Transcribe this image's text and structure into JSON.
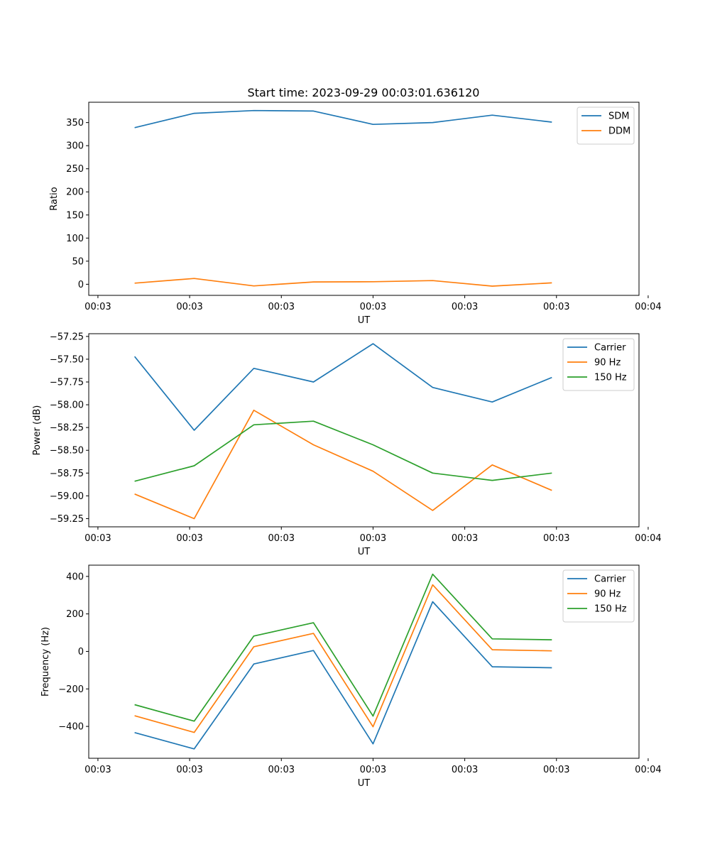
{
  "figure_title": "Start time: 2023-09-29 00:03:01.636120",
  "colors": {
    "blue": "#1f77b4",
    "orange": "#ff7f0e",
    "green": "#2ca02c"
  },
  "chart_data": [
    {
      "type": "line",
      "title": "Start time: 2023-09-29 00:03:01.636120",
      "xlabel": "UT",
      "ylabel": "Ratio",
      "x": [
        0.5,
        1.15,
        1.8,
        2.45,
        3.1,
        3.75,
        4.4,
        5.05
      ],
      "xlim": [
        0,
        6
      ],
      "xticks": [
        0.1,
        1.1,
        2.1,
        3.1,
        4.1,
        5.1,
        6.1
      ],
      "xtick_labels": [
        "00:03",
        "00:03",
        "00:03",
        "00:03",
        "00:03",
        "00:03",
        "00:04"
      ],
      "ylim": [
        -24,
        394
      ],
      "yticks": [
        0,
        50,
        100,
        150,
        200,
        250,
        300,
        350
      ],
      "ytick_labels": [
        "0",
        "50",
        "100",
        "150",
        "200",
        "250",
        "300",
        "350"
      ],
      "legend": "top-right",
      "series": [
        {
          "name": "SDM",
          "color": "#1f77b4",
          "values": [
            339,
            370,
            376,
            375,
            346,
            350,
            366,
            351
          ]
        },
        {
          "name": "DDM",
          "color": "#ff7f0e",
          "values": [
            2.5,
            12.5,
            -3.5,
            5,
            5.5,
            8,
            -4,
            3
          ]
        }
      ]
    },
    {
      "type": "line",
      "xlabel": "UT",
      "ylabel": "Power (dB)",
      "x": [
        0.5,
        1.15,
        1.8,
        2.45,
        3.1,
        3.75,
        4.4,
        5.05
      ],
      "xlim": [
        0,
        6
      ],
      "xticks": [
        0.1,
        1.1,
        2.1,
        3.1,
        4.1,
        5.1,
        6.1
      ],
      "xtick_labels": [
        "00:03",
        "00:03",
        "00:03",
        "00:03",
        "00:03",
        "00:03",
        "00:04"
      ],
      "ylim": [
        -59.34,
        -57.22
      ],
      "yticks": [
        -59.25,
        -59.0,
        -58.75,
        -58.5,
        -58.25,
        -58.0,
        -57.75,
        -57.5,
        -57.25
      ],
      "ytick_labels": [
        "−59.25",
        "−59.00",
        "−58.75",
        "−58.50",
        "−58.25",
        "−58.00",
        "−57.75",
        "−57.50",
        "−57.25"
      ],
      "legend": "top-right",
      "series": [
        {
          "name": "Carrier",
          "color": "#1f77b4",
          "values": [
            -57.47,
            -58.28,
            -57.6,
            -57.75,
            -57.33,
            -57.81,
            -57.97,
            -57.7
          ]
        },
        {
          "name": "90 Hz",
          "color": "#ff7f0e",
          "values": [
            -58.98,
            -59.25,
            -58.06,
            -58.44,
            -58.73,
            -59.16,
            -58.66,
            -58.94
          ]
        },
        {
          "name": "150 Hz",
          "color": "#2ca02c",
          "values": [
            -58.84,
            -58.67,
            -58.22,
            -58.18,
            -58.44,
            -58.75,
            -58.83,
            -58.75
          ]
        }
      ]
    },
    {
      "type": "line",
      "xlabel": "UT",
      "ylabel": "Frequency (Hz)",
      "x": [
        0.5,
        1.15,
        1.8,
        2.45,
        3.1,
        3.75,
        4.4,
        5.05
      ],
      "xlim": [
        0,
        6
      ],
      "xticks": [
        0.1,
        1.1,
        2.1,
        3.1,
        4.1,
        5.1,
        6.1
      ],
      "xtick_labels": [
        "00:03",
        "00:03",
        "00:03",
        "00:03",
        "00:03",
        "00:03",
        "00:04"
      ],
      "ylim": [
        -570,
        460
      ],
      "yticks": [
        -400,
        -200,
        0,
        200,
        400
      ],
      "ytick_labels": [
        "−400",
        "−200",
        "0",
        "200",
        "400"
      ],
      "legend": "top-right",
      "series": [
        {
          "name": "Carrier",
          "color": "#1f77b4",
          "values": [
            -433,
            -520,
            -67,
            5,
            -493,
            265,
            -82,
            -87
          ]
        },
        {
          "name": "90 Hz",
          "color": "#ff7f0e",
          "values": [
            -343,
            -432,
            25,
            96,
            -402,
            355,
            9,
            3
          ]
        },
        {
          "name": "150 Hz",
          "color": "#2ca02c",
          "values": [
            -284,
            -372,
            82,
            153,
            -345,
            412,
            67,
            62
          ]
        }
      ]
    }
  ]
}
